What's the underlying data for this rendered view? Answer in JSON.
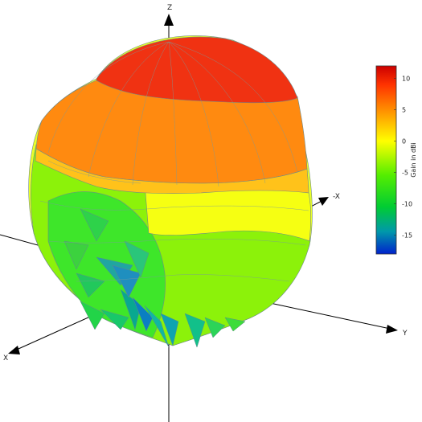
{
  "axes": {
    "z_label": "Z",
    "negx_label": "-X",
    "x_label": "X",
    "y_label": "Y"
  },
  "colorbar": {
    "title": "Gain in dBi",
    "ticks": [
      "10",
      "5",
      "0",
      "-5",
      "-10",
      "-15"
    ],
    "min": -18,
    "max": 12,
    "tick_values": [
      10,
      5,
      0,
      -5,
      -10,
      -15
    ],
    "colors": [
      "#cc0000",
      "#ff3300",
      "#ff9900",
      "#ffff00",
      "#66ff00",
      "#00cc33",
      "#009999",
      "#0033cc"
    ]
  }
}
